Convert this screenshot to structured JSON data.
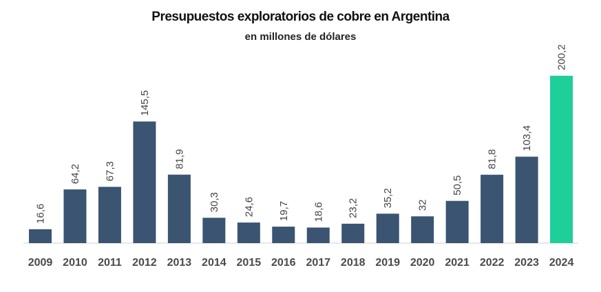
{
  "chart_data": {
    "type": "bar",
    "title": "Presupuestos exploratorios de cobre en Argentina",
    "subtitle": "en millones de dólares",
    "categories": [
      "2009",
      "2010",
      "2011",
      "2012",
      "2013",
      "2014",
      "2015",
      "2016",
      "2017",
      "2018",
      "2019",
      "2020",
      "2021",
      "2022",
      "2023",
      "2024"
    ],
    "values": [
      16.6,
      64.2,
      67.3,
      145.5,
      81.9,
      30.3,
      24.6,
      19.7,
      18.6,
      23.2,
      35.2,
      32,
      50.5,
      81.8,
      103.4,
      200.2
    ],
    "value_labels": [
      "16,6",
      "64,2",
      "67,3",
      "145,5",
      "81,9",
      "30,3",
      "24,6",
      "19,7",
      "18,6",
      "23,2",
      "35,2",
      "32",
      "50,5",
      "81,8",
      "103,4",
      "200,2"
    ],
    "highlight_index": 15,
    "colors": {
      "bar": "#3a5472",
      "highlight": "#1ecf9a",
      "axis": "#cfcfcf",
      "label": "#444444",
      "tick": "#4a4a4a"
    },
    "grid": false,
    "legend": "none",
    "ylim": [
      0,
      200.2
    ]
  }
}
